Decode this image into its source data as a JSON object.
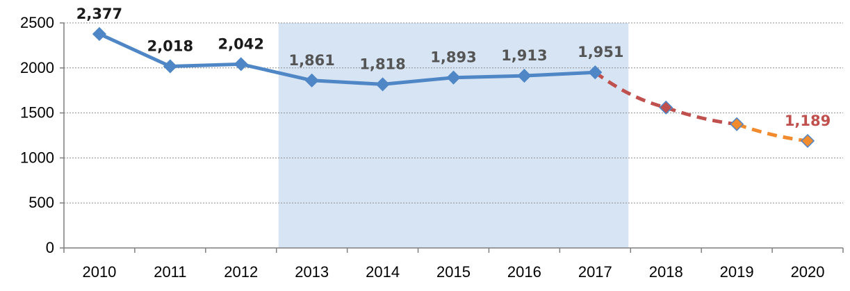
{
  "chart_data": {
    "type": "line",
    "x": [
      "2010",
      "2011",
      "2012",
      "2013",
      "2014",
      "2015",
      "2016",
      "2017",
      "2018",
      "2019",
      "2020"
    ],
    "ylim": [
      0,
      2500
    ],
    "yticks": [
      0,
      500,
      1000,
      1500,
      2000,
      2500
    ],
    "ytick_labels": [
      "0",
      "500",
      "1000",
      "1500",
      "2000",
      "2500"
    ],
    "grid": true,
    "highlight_range": [
      "2013",
      "2017"
    ],
    "highlight_color": "#d6e4f4",
    "series": [
      {
        "values": [
          2377,
          2018,
          2042,
          1861,
          1818,
          1893,
          1913,
          1951,
          null,
          null,
          null
        ],
        "style": "solid",
        "color": "#4f86c6"
      },
      {
        "values": [
          null,
          null,
          null,
          null,
          null,
          null,
          null,
          1951,
          1560,
          1375,
          null
        ],
        "style": "dashed",
        "color": "#c0504d"
      },
      {
        "values": [
          null,
          null,
          null,
          null,
          null,
          null,
          null,
          null,
          null,
          1375,
          1189
        ],
        "style": "dashed",
        "color": "#f28a2e"
      }
    ],
    "markers": [
      {
        "x": "2010",
        "y": 2377,
        "color": "#4f86c6"
      },
      {
        "x": "2011",
        "y": 2018,
        "color": "#4f86c6"
      },
      {
        "x": "2012",
        "y": 2042,
        "color": "#4f86c6"
      },
      {
        "x": "2013",
        "y": 1861,
        "color": "#4f86c6"
      },
      {
        "x": "2014",
        "y": 1818,
        "color": "#4f86c6"
      },
      {
        "x": "2015",
        "y": 1893,
        "color": "#4f86c6"
      },
      {
        "x": "2016",
        "y": 1913,
        "color": "#4f86c6"
      },
      {
        "x": "2017",
        "y": 1951,
        "color": "#4f86c6"
      },
      {
        "x": "2018",
        "y": 1560,
        "color": "#c0504d"
      },
      {
        "x": "2019",
        "y": 1375,
        "color": "#f28a2e"
      },
      {
        "x": "2020",
        "y": 1189,
        "color": "#f28a2e"
      }
    ],
    "data_labels": [
      {
        "x": "2010",
        "y": 2377,
        "text": "2,377",
        "color": "#1a1a1a"
      },
      {
        "x": "2011",
        "y": 2018,
        "text": "2,018",
        "color": "#1a1a1a"
      },
      {
        "x": "2012",
        "y": 2042,
        "text": "2,042",
        "color": "#1a1a1a"
      },
      {
        "x": "2013",
        "y": 1861,
        "text": "1,861",
        "color": "#555555"
      },
      {
        "x": "2014",
        "y": 1818,
        "text": "1,818",
        "color": "#555555"
      },
      {
        "x": "2015",
        "y": 1893,
        "text": "1,893",
        "color": "#555555"
      },
      {
        "x": "2016",
        "y": 1913,
        "text": "1,913",
        "color": "#555555"
      },
      {
        "x": "2017",
        "y": 1951,
        "text": "1,951",
        "color": "#555555"
      },
      {
        "x": "2020",
        "y": 1189,
        "text": "1,189",
        "color": "#c0504d"
      }
    ]
  }
}
